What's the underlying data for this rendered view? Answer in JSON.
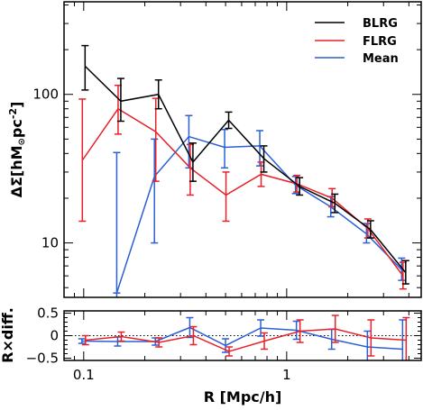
{
  "chart_data": [
    {
      "type": "line",
      "panel": "top",
      "xscale": "log",
      "yscale": "log",
      "xlim": [
        0.08,
        4.6
      ],
      "ylim": [
        4.3,
        420
      ],
      "ylabel": "ΔΣ[hM⊙pc⁻²]",
      "ylabel_parts": [
        "ΔΣ[hM",
        "⊙",
        "pc",
        "-2",
        "]"
      ],
      "yticks": [
        10,
        100
      ],
      "ytick_labels": [
        "10",
        "100"
      ],
      "legend_position": "top-right",
      "legend": [
        "BLRG",
        "FLRG",
        "Mean"
      ],
      "colors": {
        "BLRG": "#000000",
        "FLRG": "#e8202a",
        "Mean": "#2b5fd6"
      },
      "series": [
        {
          "name": "BLRG",
          "x": [
            0.1,
            0.15,
            0.23,
            0.34,
            0.51,
            0.76,
            1.14,
            1.7,
            2.55,
            3.8
          ],
          "y": [
            155,
            90,
            100,
            35,
            67,
            37,
            24,
            18.5,
            12.3,
            6.3
          ],
          "err_low": [
            48,
            24,
            20,
            9,
            8,
            7,
            3,
            2.5,
            1.5,
            1.0
          ],
          "err_high": [
            58,
            38,
            25,
            12,
            9,
            8,
            3.5,
            2.8,
            1.8,
            1.3
          ]
        },
        {
          "name": "FLRG",
          "x": [
            0.1,
            0.15,
            0.23,
            0.34,
            0.51,
            0.76,
            1.14,
            1.7,
            2.55,
            3.8
          ],
          "y": [
            36,
            80,
            56,
            32,
            21,
            29,
            25,
            20,
            12.5,
            6.0
          ],
          "err_low": [
            22,
            26,
            30,
            11,
            7,
            5,
            3,
            2.5,
            1.7,
            1.1
          ],
          "err_high": [
            57,
            35,
            38,
            14,
            9,
            6,
            3.5,
            3.2,
            2.0,
            1.4
          ]
        },
        {
          "name": "Mean",
          "x": [
            0.1,
            0.15,
            0.23,
            0.34,
            0.51,
            0.76,
            1.14,
            1.7,
            2.55,
            3.8
          ],
          "y": [
            null,
            4.6,
            28,
            52,
            44,
            45,
            24.5,
            17.5,
            11.5,
            6.6
          ],
          "err_low": [
            0,
            0,
            18,
            20,
            12,
            12,
            3,
            2.5,
            1.5,
            1.0
          ],
          "err_high": [
            0,
            36,
            22,
            20,
            14,
            12,
            3.5,
            3.0,
            2.0,
            1.3
          ]
        }
      ]
    },
    {
      "type": "line",
      "panel": "bottom",
      "xscale": "log",
      "xlim": [
        0.08,
        4.6
      ],
      "ylim": [
        -0.55,
        0.55
      ],
      "xlabel": "R [Mpc/h]",
      "ylabel": "R×diff.",
      "xticks": [
        0.1,
        1
      ],
      "xtick_labels": [
        "0.1",
        "1"
      ],
      "yticks": [
        0.5,
        0,
        -0.5
      ],
      "ytick_labels": [
        "0.5",
        "0",
        "−0.5"
      ],
      "reference_line": 0,
      "series": [
        {
          "name": "FLRG",
          "x": [
            0.1,
            0.15,
            0.23,
            0.34,
            0.51,
            0.76,
            1.14,
            1.7,
            2.55,
            3.8
          ],
          "y": [
            -0.1,
            -0.02,
            -0.15,
            0.0,
            -0.35,
            -0.12,
            0.1,
            0.15,
            -0.05,
            -0.1
          ],
          "err": [
            0.1,
            0.1,
            0.1,
            0.2,
            0.1,
            0.18,
            0.25,
            0.3,
            0.4,
            0.5
          ]
        },
        {
          "name": "Mean",
          "x": [
            0.1,
            0.15,
            0.23,
            0.34,
            0.51,
            0.76,
            1.14,
            1.7,
            2.55,
            3.8
          ],
          "y": [
            -0.12,
            -0.13,
            -0.13,
            0.18,
            -0.22,
            0.17,
            0.12,
            -0.08,
            -0.25,
            -0.3
          ],
          "err": [
            0.05,
            0.1,
            0.08,
            0.22,
            0.15,
            0.18,
            0.2,
            0.22,
            0.35,
            0.65
          ]
        }
      ]
    }
  ]
}
